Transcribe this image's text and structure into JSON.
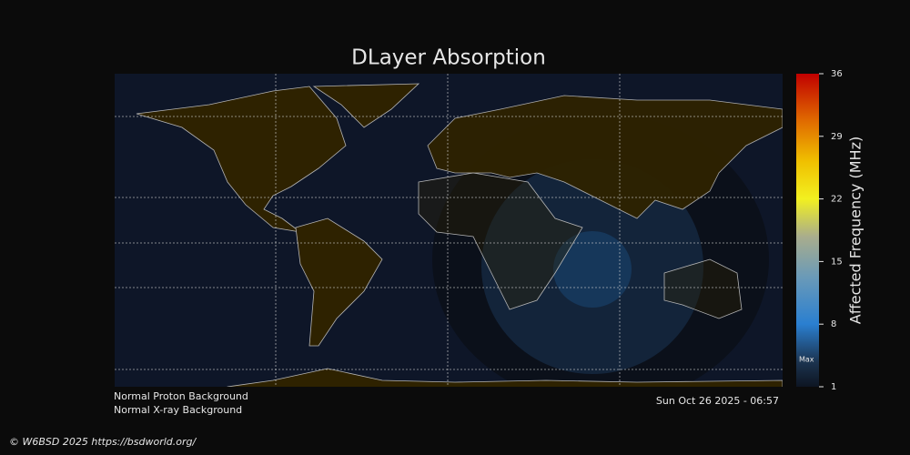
{
  "title": "DLayer Absorption",
  "colorbar": {
    "label": "Affected Frequency (MHz)",
    "range": [
      1,
      36
    ],
    "ticks": [
      1,
      8,
      15,
      22,
      29,
      36
    ],
    "marker": "Max"
  },
  "status": [
    "Normal Proton Background",
    "Normal X-ray Background"
  ],
  "timestamp": "Sun Oct 26 2025 - 06:57",
  "credit": "© W6BSD 2025 https://bsdworld.org/"
}
